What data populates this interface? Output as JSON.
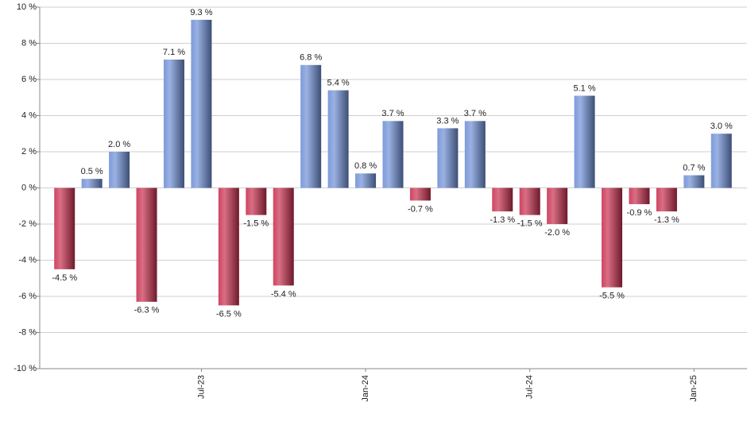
{
  "chart_data": {
    "type": "bar",
    "categories": [
      null,
      null,
      null,
      null,
      null,
      "Jul-23",
      null,
      null,
      null,
      null,
      null,
      "Jan-24",
      null,
      null,
      null,
      null,
      null,
      "Jul-24",
      null,
      null,
      null,
      null,
      null,
      "Jan-25",
      null
    ],
    "values": [
      -4.5,
      0.5,
      2.0,
      -6.3,
      7.1,
      9.3,
      -6.5,
      -1.5,
      -5.4,
      6.8,
      5.4,
      0.8,
      3.7,
      -0.7,
      3.3,
      3.7,
      -1.3,
      -1.5,
      -2.0,
      5.1,
      -5.5,
      -0.9,
      -1.3,
      0.7,
      3.0
    ],
    "value_labels": [
      "-4.5 %",
      "0.5 %",
      "2.0 %",
      "-6.3 %",
      "7.1 %",
      "9.3 %",
      "-6.5 %",
      "-1.5 %",
      "-5.4 %",
      "6.8 %",
      "5.4 %",
      "0.8 %",
      "3.7 %",
      "-0.7 %",
      "3.3 %",
      "3.7 %",
      "-1.3 %",
      "-1.5 %",
      "-2.0 %",
      "5.1 %",
      "-5.5 %",
      "-0.9 %",
      "-1.3 %",
      "0.7 %",
      "3.0 %"
    ],
    "positive_color": "#6f8fd6",
    "negative_color": "#c8304f",
    "ylim": [
      -10,
      10
    ],
    "yticks": [
      {
        "value": -10,
        "label": "-10 %"
      },
      {
        "value": -8,
        "label": "-8 %"
      },
      {
        "value": -6,
        "label": "-6 %"
      },
      {
        "value": -4,
        "label": "-4 %"
      },
      {
        "value": -2,
        "label": "-2 %"
      },
      {
        "value": 0,
        "label": "0 %"
      },
      {
        "value": 2,
        "label": "2 %"
      },
      {
        "value": 4,
        "label": "4 %"
      },
      {
        "value": 6,
        "label": "6 %"
      },
      {
        "value": 8,
        "label": "8 %"
      },
      {
        "value": 10,
        "label": "10 %"
      }
    ],
    "grid": true
  }
}
